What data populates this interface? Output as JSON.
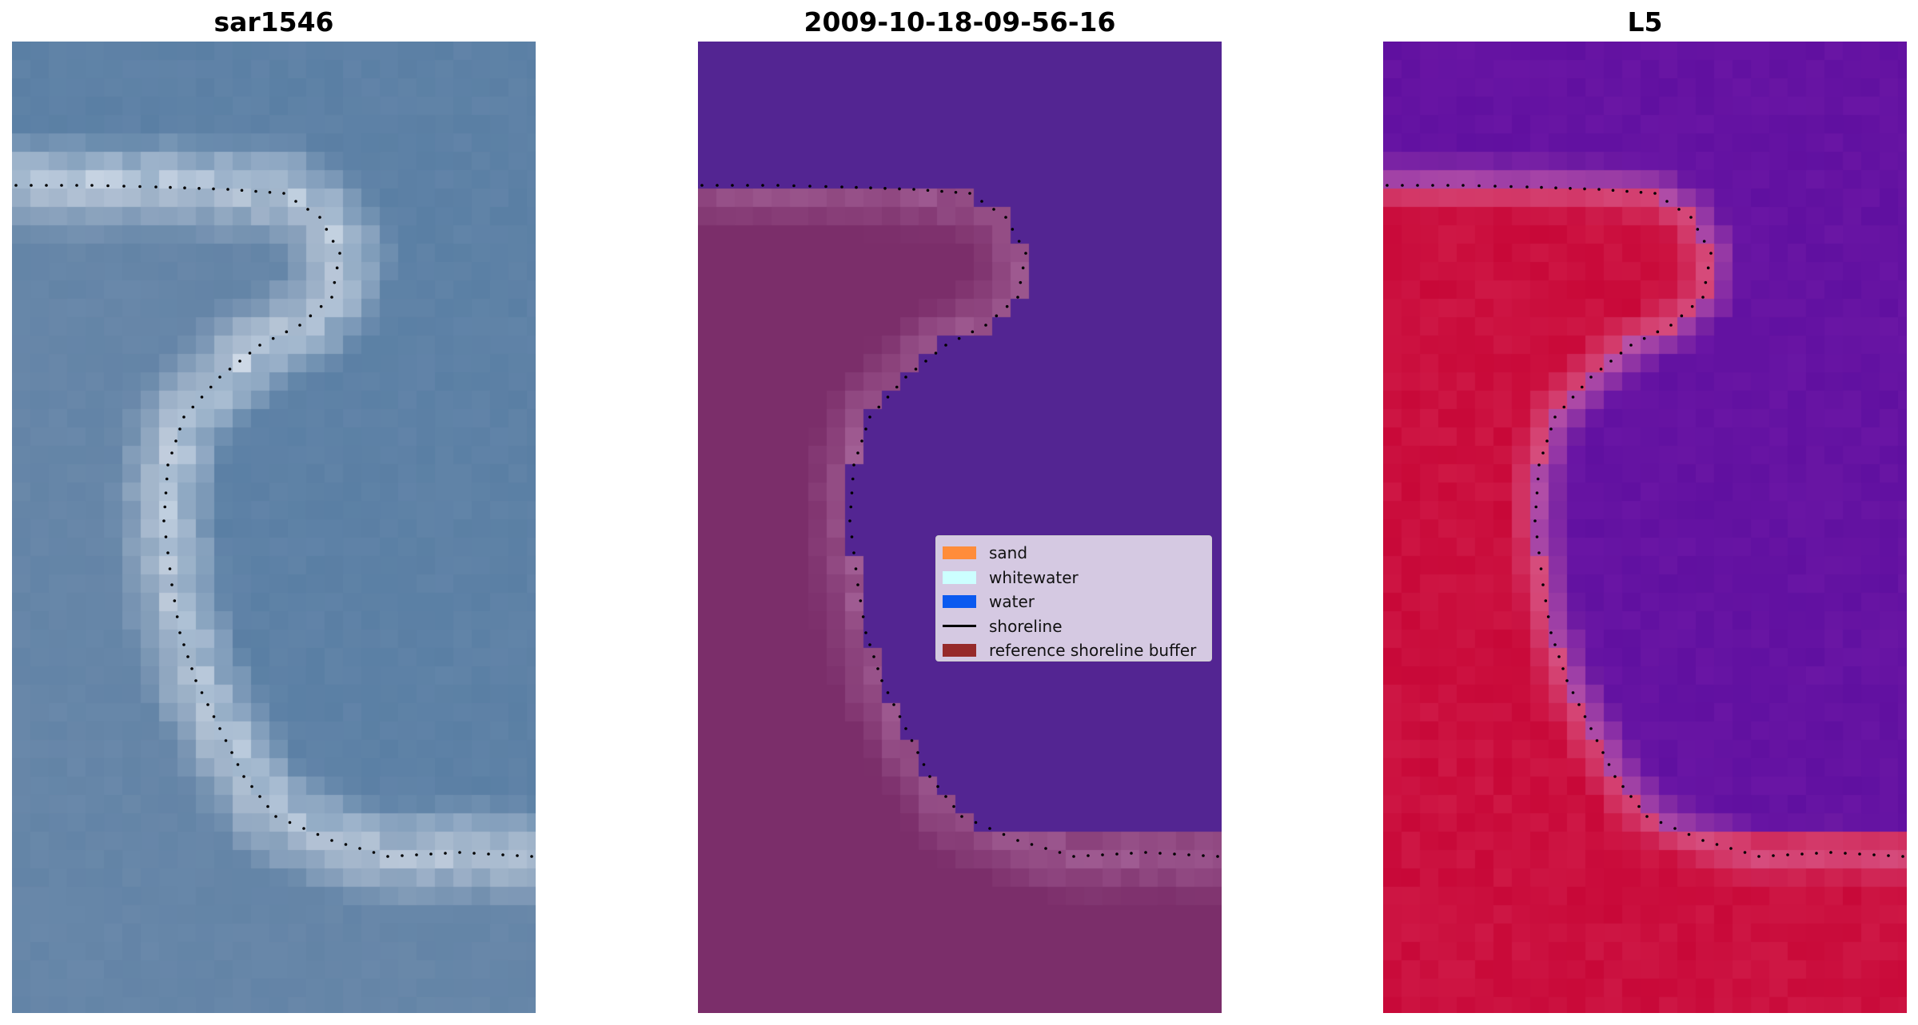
{
  "panels": [
    {
      "title": "sar1546",
      "kind": "rgb"
    },
    {
      "title": "2009-10-18-09-56-16",
      "kind": "classified"
    },
    {
      "title": "L5",
      "kind": "index"
    }
  ],
  "legend": [
    {
      "label": "sand",
      "color": "#ff8c3a",
      "type": "patch"
    },
    {
      "label": "whitewater",
      "color": "#ccffff",
      "type": "patch"
    },
    {
      "label": "water",
      "color": "#0a5af0",
      "type": "patch"
    },
    {
      "label": "shoreline",
      "color": "#000000",
      "type": "line"
    },
    {
      "label": "reference shoreline buffer",
      "color": "#962a2a",
      "type": "patch"
    }
  ],
  "colors": {
    "rgb_water": "#5a7fa4",
    "rgb_whitewater": "#e8eef6",
    "class_water": "#532592",
    "class_buffer": "#7b2e6a",
    "class_whitewater": "#ac6ba0",
    "index_water": "#6010a0",
    "index_sand": "#c80838",
    "shoreline": "#000000"
  }
}
